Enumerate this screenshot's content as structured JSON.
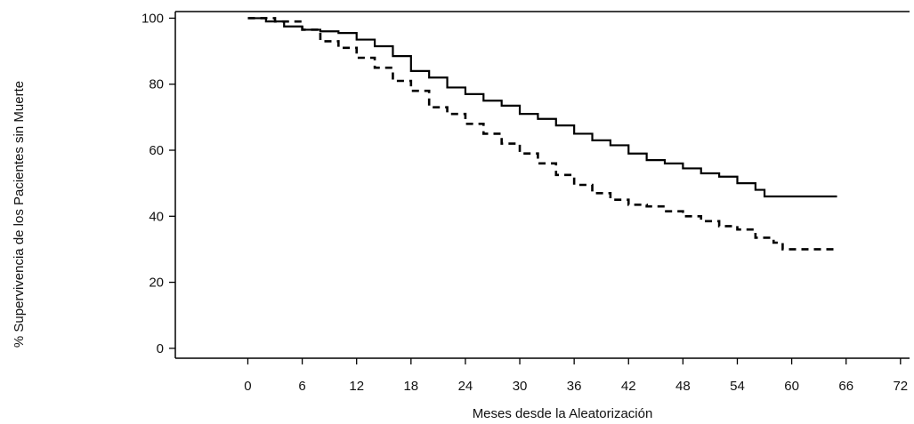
{
  "chart_data": {
    "type": "line",
    "title": "",
    "xlabel": "Meses desde la Aleatorización",
    "ylabel": "% Supervivencia de los Pacientes sin Muerte",
    "xlim": [
      -8,
      73
    ],
    "ylim": [
      -3,
      102
    ],
    "xticks": [
      0,
      6,
      12,
      18,
      24,
      30,
      36,
      42,
      48,
      54,
      60,
      66,
      72
    ],
    "yticks": [
      0,
      20,
      40,
      60,
      80,
      100
    ],
    "grid": false,
    "legend": "none",
    "line_color": "#000000",
    "series": [
      {
        "style": "solid",
        "points": [
          [
            0,
            100
          ],
          [
            2,
            99
          ],
          [
            4,
            97.5
          ],
          [
            6,
            96.5
          ],
          [
            8,
            96
          ],
          [
            10,
            95.5
          ],
          [
            12,
            93.5
          ],
          [
            14,
            91.5
          ],
          [
            16,
            88.5
          ],
          [
            18,
            84
          ],
          [
            20,
            82
          ],
          [
            22,
            79
          ],
          [
            24,
            77
          ],
          [
            26,
            75
          ],
          [
            28,
            73.5
          ],
          [
            30,
            71
          ],
          [
            32,
            69.5
          ],
          [
            34,
            67.5
          ],
          [
            36,
            65
          ],
          [
            38,
            63
          ],
          [
            40,
            61.5
          ],
          [
            42,
            59
          ],
          [
            44,
            57
          ],
          [
            46,
            56
          ],
          [
            48,
            54.5
          ],
          [
            50,
            53
          ],
          [
            52,
            52
          ],
          [
            54,
            50
          ],
          [
            56,
            48
          ],
          [
            57,
            46
          ],
          [
            65,
            46
          ]
        ]
      },
      {
        "style": "dashed",
        "points": [
          [
            0,
            100
          ],
          [
            3,
            99
          ],
          [
            6,
            96.5
          ],
          [
            8,
            93
          ],
          [
            10,
            91
          ],
          [
            12,
            88
          ],
          [
            14,
            85
          ],
          [
            16,
            81
          ],
          [
            18,
            78
          ],
          [
            20,
            73
          ],
          [
            22,
            71
          ],
          [
            24,
            68
          ],
          [
            26,
            65
          ],
          [
            28,
            62
          ],
          [
            30,
            59
          ],
          [
            32,
            56
          ],
          [
            34,
            52.5
          ],
          [
            36,
            49.5
          ],
          [
            38,
            47
          ],
          [
            40,
            45
          ],
          [
            42,
            43.5
          ],
          [
            44,
            43
          ],
          [
            46,
            41.5
          ],
          [
            48,
            40
          ],
          [
            50,
            38.5
          ],
          [
            52,
            37
          ],
          [
            54,
            36
          ],
          [
            56,
            33.5
          ],
          [
            58,
            32
          ],
          [
            59,
            30
          ],
          [
            65,
            30
          ]
        ]
      }
    ]
  }
}
